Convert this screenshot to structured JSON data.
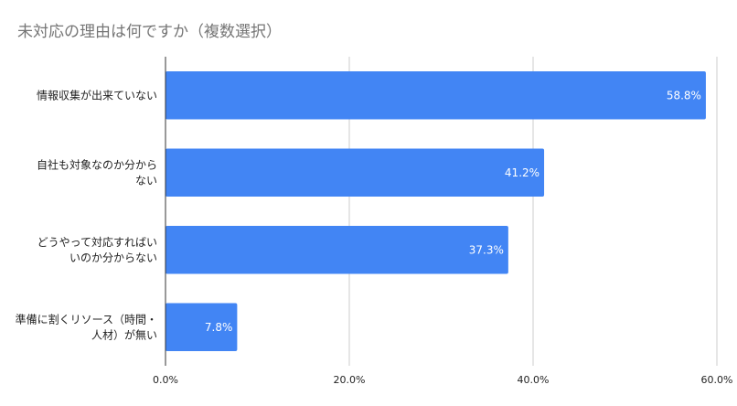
{
  "chart_data": {
    "type": "bar",
    "orientation": "horizontal",
    "title": "未対応の理由は何ですか（複数選択）",
    "categories": [
      [
        "情報収集が出来ていない"
      ],
      [
        "自社も対象なのか分から",
        "ない"
      ],
      [
        "どうやって対応すればい",
        "いのか分からない"
      ],
      [
        "準備に割くリソース（時間・",
        "人材）が無い"
      ]
    ],
    "values": [
      58.8,
      41.2,
      37.3,
      7.8
    ],
    "value_labels": [
      "58.8%",
      "41.2%",
      "37.3%",
      "7.8%"
    ],
    "xlim": [
      0,
      60
    ],
    "xticks": [
      0,
      20,
      40,
      60
    ],
    "xtick_labels": [
      "0.0%",
      "20.0%",
      "40.0%",
      "60.0%"
    ],
    "grid": true,
    "bar_color": "#4285F4",
    "grid_color": "#cccccc"
  }
}
